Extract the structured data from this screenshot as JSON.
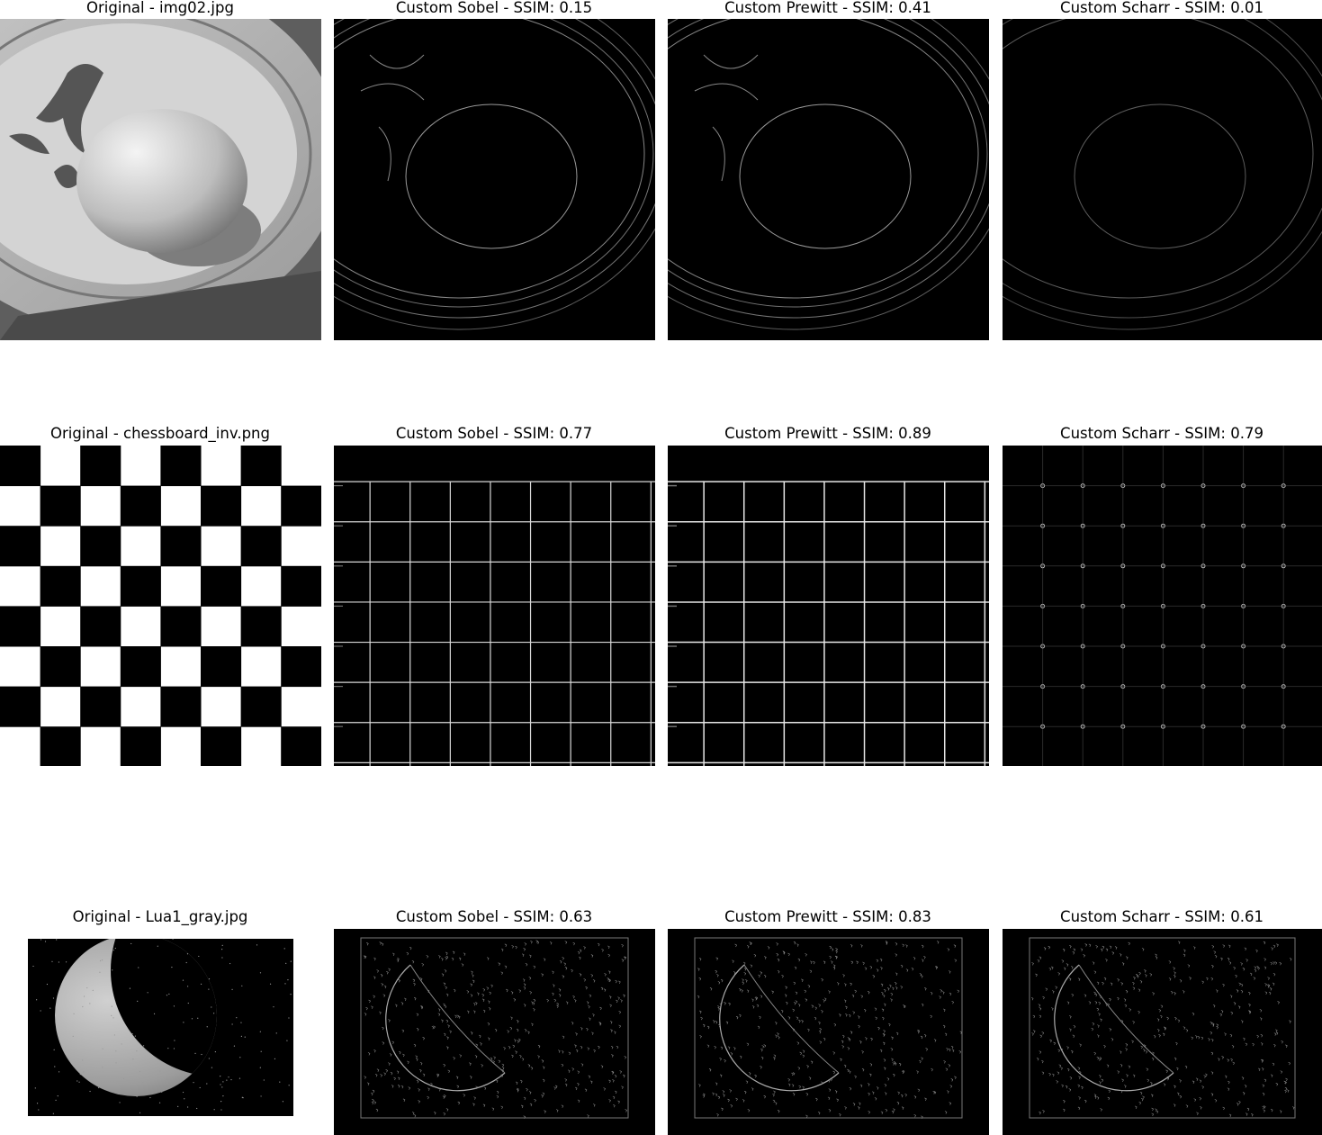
{
  "rows": [
    {
      "original_title": "Original - img02.jpg",
      "sobel_title": "Custom Sobel - SSIM: 0.15",
      "prewitt_title": "Custom Prewitt - SSIM: 0.41",
      "scharr_title": "Custom Scharr - SSIM: 0.01"
    },
    {
      "original_title": "Original - chessboard_inv.png",
      "sobel_title": "Custom Sobel - SSIM: 0.77",
      "prewitt_title": "Custom Prewitt - SSIM: 0.89",
      "scharr_title": "Custom Scharr - SSIM: 0.79"
    },
    {
      "original_title": "Original - Lua1_gray.jpg",
      "sobel_title": "Custom Sobel - SSIM: 0.63",
      "prewitt_title": "Custom Prewitt - SSIM: 0.83",
      "scharr_title": "Custom Scharr - SSIM: 0.61"
    }
  ]
}
